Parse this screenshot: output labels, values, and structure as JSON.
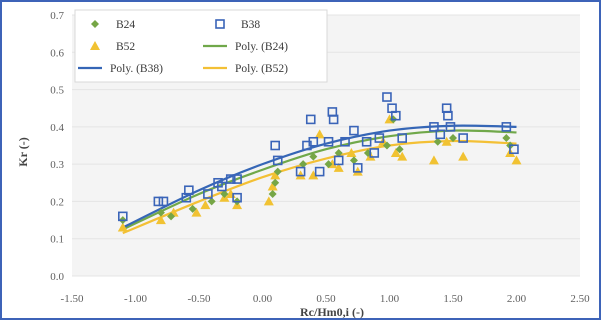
{
  "colors": {
    "frame_border": "#3d63b8",
    "b24": "#76a646",
    "b38": "#3a64b8",
    "b52": "#f1c232",
    "poly_b24": "#70a84a",
    "poly_b38": "#3566b6",
    "poly_b52": "#f3c035",
    "grid": "#e4e4e4",
    "plot_bg": "#f4f4f4"
  },
  "chart_data": {
    "type": "scatter",
    "title": "",
    "xlabel": "Rc/Hm0,i (-)",
    "ylabel": "Kr (-)",
    "xlim": [
      -1.5,
      2.5
    ],
    "ylim": [
      0.0,
      0.7
    ],
    "x_ticks": [
      "-1.50",
      "-1.00",
      "-0.50",
      "0.00",
      "0.50",
      "1.00",
      "1.50",
      "2.00",
      "2.50"
    ],
    "y_ticks": [
      "0.0",
      "0.1",
      "0.2",
      "0.3",
      "0.4",
      "0.5",
      "0.6",
      "0.7"
    ],
    "grid": "horizontal",
    "legend_position": "top-left",
    "series": [
      {
        "name": "B24",
        "marker": "diamond",
        "color_key": "b24",
        "points": [
          [
            -1.1,
            0.15
          ],
          [
            -0.8,
            0.17
          ],
          [
            -0.72,
            0.16
          ],
          [
            -0.55,
            0.18
          ],
          [
            -0.4,
            0.2
          ],
          [
            -0.3,
            0.22
          ],
          [
            -0.2,
            0.2
          ],
          [
            0.08,
            0.22
          ],
          [
            0.1,
            0.25
          ],
          [
            0.12,
            0.28
          ],
          [
            0.32,
            0.3
          ],
          [
            0.4,
            0.32
          ],
          [
            0.52,
            0.3
          ],
          [
            0.6,
            0.33
          ],
          [
            0.72,
            0.31
          ],
          [
            0.83,
            0.33
          ],
          [
            0.98,
            0.35
          ],
          [
            1.03,
            0.42
          ],
          [
            1.08,
            0.34
          ],
          [
            1.38,
            0.36
          ],
          [
            1.5,
            0.37
          ],
          [
            1.92,
            0.37
          ],
          [
            1.95,
            0.35
          ]
        ]
      },
      {
        "name": "B38",
        "marker": "square",
        "color_key": "b38",
        "points": [
          [
            -1.1,
            0.16
          ],
          [
            -0.82,
            0.2
          ],
          [
            -0.78,
            0.2
          ],
          [
            -0.6,
            0.21
          ],
          [
            -0.58,
            0.23
          ],
          [
            -0.43,
            0.22
          ],
          [
            -0.35,
            0.25
          ],
          [
            -0.32,
            0.24
          ],
          [
            -0.25,
            0.26
          ],
          [
            -0.2,
            0.26
          ],
          [
            -0.2,
            0.21
          ],
          [
            0.1,
            0.35
          ],
          [
            0.12,
            0.31
          ],
          [
            0.3,
            0.28
          ],
          [
            0.35,
            0.35
          ],
          [
            0.38,
            0.42
          ],
          [
            0.4,
            0.36
          ],
          [
            0.45,
            0.28
          ],
          [
            0.52,
            0.36
          ],
          [
            0.55,
            0.44
          ],
          [
            0.56,
            0.42
          ],
          [
            0.6,
            0.31
          ],
          [
            0.65,
            0.36
          ],
          [
            0.72,
            0.39
          ],
          [
            0.75,
            0.29
          ],
          [
            0.82,
            0.36
          ],
          [
            0.88,
            0.33
          ],
          [
            0.92,
            0.37
          ],
          [
            0.98,
            0.48
          ],
          [
            1.02,
            0.45
          ],
          [
            1.05,
            0.43
          ],
          [
            1.1,
            0.37
          ],
          [
            1.35,
            0.4
          ],
          [
            1.4,
            0.38
          ],
          [
            1.45,
            0.45
          ],
          [
            1.46,
            0.43
          ],
          [
            1.48,
            0.4
          ],
          [
            1.58,
            0.37
          ],
          [
            1.92,
            0.4
          ],
          [
            1.98,
            0.34
          ]
        ]
      },
      {
        "name": "B52",
        "marker": "triangle",
        "color_key": "b52",
        "points": [
          [
            -1.1,
            0.13
          ],
          [
            -0.8,
            0.15
          ],
          [
            -0.7,
            0.17
          ],
          [
            -0.52,
            0.17
          ],
          [
            -0.45,
            0.19
          ],
          [
            -0.3,
            0.21
          ],
          [
            -0.25,
            0.22
          ],
          [
            -0.2,
            0.19
          ],
          [
            0.05,
            0.2
          ],
          [
            0.08,
            0.24
          ],
          [
            0.1,
            0.27
          ],
          [
            0.3,
            0.27
          ],
          [
            0.4,
            0.27
          ],
          [
            0.45,
            0.38
          ],
          [
            0.55,
            0.3
          ],
          [
            0.6,
            0.29
          ],
          [
            0.7,
            0.33
          ],
          [
            0.75,
            0.28
          ],
          [
            0.85,
            0.32
          ],
          [
            0.95,
            0.36
          ],
          [
            1.0,
            0.42
          ],
          [
            1.05,
            0.33
          ],
          [
            1.1,
            0.32
          ],
          [
            1.35,
            0.31
          ],
          [
            1.45,
            0.36
          ],
          [
            1.58,
            0.32
          ],
          [
            1.95,
            0.33
          ],
          [
            2.0,
            0.31
          ]
        ]
      },
      {
        "name": "Poly. (B24)",
        "type": "trendline",
        "color_key": "poly_b24",
        "curve": [
          [
            -1.1,
            0.125
          ],
          [
            -0.5,
            0.22
          ],
          [
            0.0,
            0.285
          ],
          [
            0.5,
            0.34
          ],
          [
            1.0,
            0.375
          ],
          [
            1.5,
            0.39
          ],
          [
            2.0,
            0.385
          ]
        ]
      },
      {
        "name": "Poly. (B38)",
        "type": "trendline",
        "color_key": "poly_b38",
        "curve": [
          [
            -1.1,
            0.13
          ],
          [
            -0.5,
            0.23
          ],
          [
            0.0,
            0.3
          ],
          [
            0.5,
            0.355
          ],
          [
            1.0,
            0.39
          ],
          [
            1.5,
            0.403
          ],
          [
            2.0,
            0.4
          ]
        ]
      },
      {
        "name": "Poly. (B52)",
        "type": "trendline",
        "color_key": "poly_b52",
        "curve": [
          [
            -1.1,
            0.115
          ],
          [
            -0.5,
            0.2
          ],
          [
            0.0,
            0.265
          ],
          [
            0.5,
            0.315
          ],
          [
            1.0,
            0.35
          ],
          [
            1.5,
            0.362
          ],
          [
            2.0,
            0.355
          ]
        ]
      }
    ]
  }
}
